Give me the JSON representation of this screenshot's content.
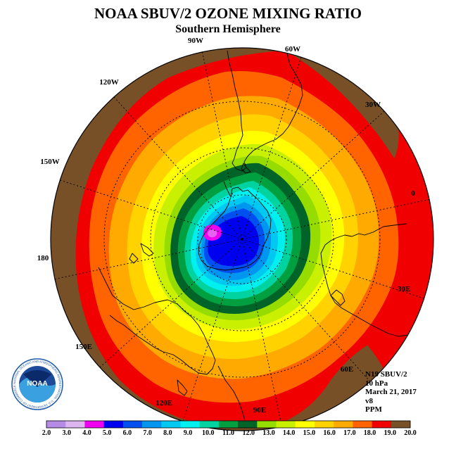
{
  "title": "NOAA SBUV/2 OZONE MIXING RATIO",
  "subtitle": "Southern Hemisphere",
  "longitude_labels": [
    "90W",
    "60W",
    "30W",
    "0",
    "30E",
    "60E",
    "90E",
    "120E",
    "150E",
    "180",
    "150W",
    "120W"
  ],
  "info": {
    "instrument": "N19 SBUV/2",
    "level": "10 hPa",
    "date": "March 21, 2017",
    "version": "v8",
    "units": "PPM"
  },
  "logo": {
    "text": "NOAA",
    "ring_text": "NATIONAL OCEANIC AND ATMOSPHERIC ADMINISTRATION · U.S. DEPARTMENT OF COMMERCE"
  },
  "colorbar": {
    "ticks": [
      "2.0",
      "3.0",
      "4.0",
      "5.0",
      "6.0",
      "7.0",
      "8.0",
      "9.0",
      "10.0",
      "11.0",
      "12.0",
      "13.0",
      "14.0",
      "15.0",
      "16.0",
      "17.0",
      "18.0",
      "19.0",
      "20.0"
    ],
    "colors": [
      "#b48ce6",
      "#dcb4f0",
      "#f000f0",
      "#0000f0",
      "#0050f0",
      "#0096f0",
      "#00c8f0",
      "#00f0f0",
      "#00d2a0",
      "#00a040",
      "#006428",
      "#96dc00",
      "#c8f000",
      "#ffff00",
      "#ffd200",
      "#ffaa00",
      "#ff6400",
      "#f00000",
      "#785028"
    ]
  },
  "map": {
    "contour_levels_ppm": [
      20.0,
      19.0,
      18.0,
      17.0,
      16.0,
      15.0,
      14.0,
      13.0,
      12.0,
      11.0,
      10.0,
      9.0,
      8.0,
      7.0,
      6.0,
      5.0
    ],
    "min_value_ppm": 4.5,
    "max_value_ppm": 20.0
  }
}
